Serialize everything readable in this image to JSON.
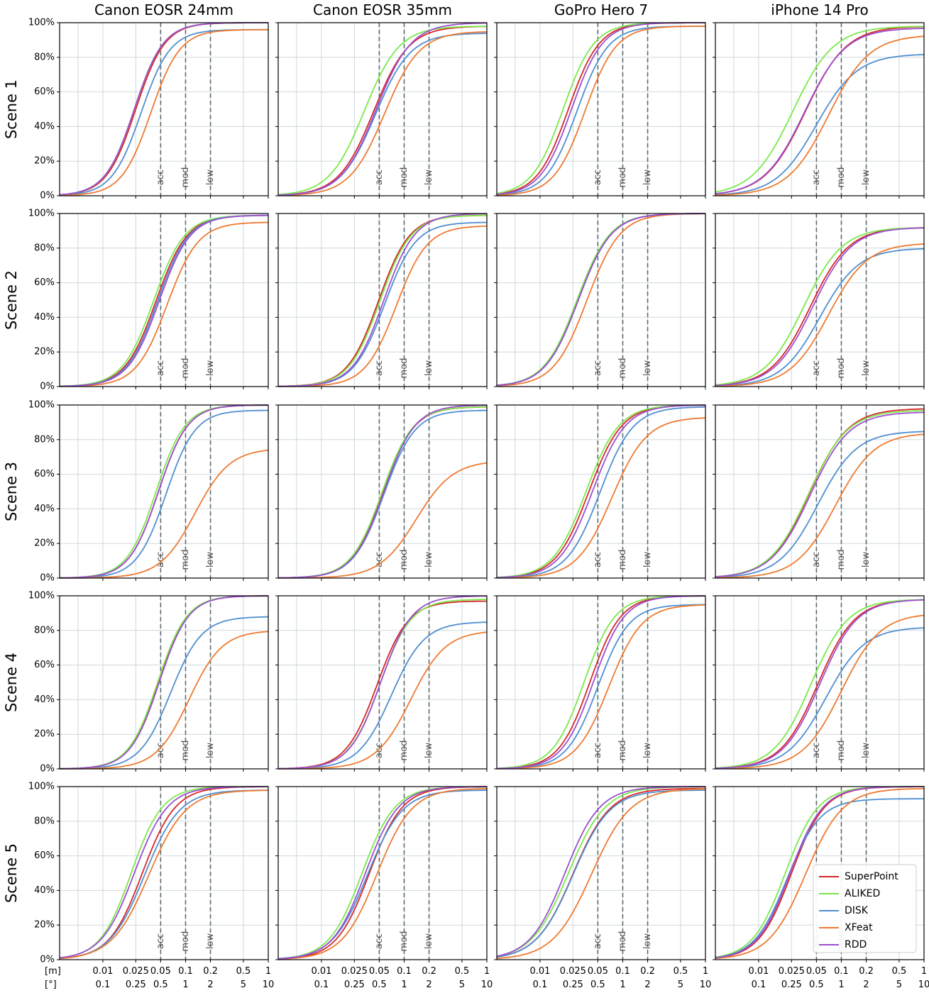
{
  "figure": {
    "column_titles": [
      "Canon EOSR 24mm",
      "Canon EOSR 35mm",
      "GoPro Hero 7",
      "iPhone 14 Pro"
    ],
    "row_titles": [
      "Scene 1",
      "Scene 2",
      "Scene 3",
      "Scene 4",
      "Scene 5"
    ],
    "x_unit_labels": [
      "[m]",
      "[°]"
    ]
  },
  "chart_data": {
    "type": "line",
    "subtype": "cumulative-distribution",
    "layout": "grid 5 rows (scenes) x 4 columns (cameras)",
    "x_scale": "log",
    "x_range_m": [
      0.003,
      1
    ],
    "x_ticks_m": [
      "0.01",
      "0.025",
      "0.05",
      "0.1",
      "0.2",
      "0.5",
      "1"
    ],
    "x_ticks_deg": [
      "0.1",
      "0.25",
      "0.5",
      "1",
      "2",
      "5",
      "10"
    ],
    "y_ticks": [
      "0%",
      "20%",
      "40%",
      "60%",
      "80%",
      "100%"
    ],
    "ylim": [
      0,
      100
    ],
    "grid": true,
    "thresholds": [
      {
        "label": "acc",
        "m": 0.05,
        "deg": 0.5
      },
      {
        "label": "mod",
        "m": 0.1,
        "deg": 1
      },
      {
        "label": "low",
        "m": 0.2,
        "deg": 2
      }
    ],
    "legend": {
      "location": "bottom-right of Scene 5 / iPhone 14 Pro panel"
    },
    "series": [
      {
        "name": "SuperPoint",
        "color": "#d62728"
      },
      {
        "name": "ALIKED",
        "color": "#7be84a"
      },
      {
        "name": "DISK",
        "color": "#4f8fd0"
      },
      {
        "name": "XFeat",
        "color": "#ee7a30"
      },
      {
        "name": "RDD",
        "color": "#9b4fd0"
      }
    ],
    "panels": [
      {
        "row": 0,
        "col": 0,
        "curves": [
          {
            "m": 0.025,
            "final": 100,
            "s": 0.3
          },
          {
            "m": 0.024,
            "final": 100,
            "s": 0.3
          },
          {
            "m": 0.029,
            "final": 96,
            "s": 0.3
          },
          {
            "m": 0.038,
            "final": 96,
            "s": 0.3
          },
          {
            "m": 0.024,
            "final": 100,
            "s": 0.3
          }
        ]
      },
      {
        "row": 0,
        "col": 1,
        "curves": [
          {
            "m": 0.043,
            "final": 98,
            "s": 0.36
          },
          {
            "m": 0.033,
            "final": 98,
            "s": 0.36
          },
          {
            "m": 0.045,
            "final": 94,
            "s": 0.36
          },
          {
            "m": 0.058,
            "final": 95,
            "s": 0.36
          },
          {
            "m": 0.046,
            "final": 100,
            "s": 0.36
          }
        ]
      },
      {
        "row": 0,
        "col": 2,
        "curves": [
          {
            "m": 0.022,
            "final": 100,
            "s": 0.32
          },
          {
            "m": 0.019,
            "final": 100,
            "s": 0.32
          },
          {
            "m": 0.028,
            "final": 98,
            "s": 0.32
          },
          {
            "m": 0.035,
            "final": 98,
            "s": 0.32
          },
          {
            "m": 0.024,
            "final": 100,
            "s": 0.32
          }
        ]
      },
      {
        "row": 0,
        "col": 3,
        "curves": [
          {
            "m": 0.037,
            "final": 98,
            "s": 0.42
          },
          {
            "m": 0.026,
            "final": 98,
            "s": 0.42
          },
          {
            "m": 0.05,
            "final": 82,
            "s": 0.42
          },
          {
            "m": 0.07,
            "final": 93,
            "s": 0.42
          },
          {
            "m": 0.036,
            "final": 97,
            "s": 0.42
          }
        ]
      },
      {
        "row": 1,
        "col": 0,
        "curves": [
          {
            "m": 0.044,
            "final": 99,
            "s": 0.32
          },
          {
            "m": 0.041,
            "final": 99,
            "s": 0.32
          },
          {
            "m": 0.046,
            "final": 99,
            "s": 0.32
          },
          {
            "m": 0.06,
            "final": 95,
            "s": 0.32
          },
          {
            "m": 0.048,
            "final": 99,
            "s": 0.32
          }
        ]
      },
      {
        "row": 1,
        "col": 1,
        "curves": [
          {
            "m": 0.049,
            "final": 99,
            "s": 0.32
          },
          {
            "m": 0.051,
            "final": 99,
            "s": 0.32
          },
          {
            "m": 0.058,
            "final": 95,
            "s": 0.32
          },
          {
            "m": 0.08,
            "final": 93,
            "s": 0.32
          },
          {
            "m": 0.057,
            "final": 100,
            "s": 0.32
          }
        ]
      },
      {
        "row": 1,
        "col": 2,
        "curves": [
          {
            "m": 0.029,
            "final": 100,
            "s": 0.34
          },
          {
            "m": 0.028,
            "final": 100,
            "s": 0.34
          },
          {
            "m": 0.029,
            "final": 100,
            "s": 0.34
          },
          {
            "m": 0.037,
            "final": 100,
            "s": 0.34
          },
          {
            "m": 0.029,
            "final": 100,
            "s": 0.34
          }
        ]
      },
      {
        "row": 1,
        "col": 3,
        "curves": [
          {
            "m": 0.042,
            "final": 92,
            "s": 0.4
          },
          {
            "m": 0.035,
            "final": 92,
            "s": 0.4
          },
          {
            "m": 0.055,
            "final": 80,
            "s": 0.4
          },
          {
            "m": 0.07,
            "final": 83,
            "s": 0.4
          },
          {
            "m": 0.045,
            "final": 92,
            "s": 0.4
          }
        ]
      },
      {
        "row": 2,
        "col": 0,
        "curves": [
          {
            "m": 0.047,
            "final": 100,
            "s": 0.3
          },
          {
            "m": 0.044,
            "final": 100,
            "s": 0.3
          },
          {
            "m": 0.058,
            "final": 97,
            "s": 0.3
          },
          {
            "m": 0.13,
            "final": 75,
            "s": 0.36
          },
          {
            "m": 0.047,
            "final": 100,
            "s": 0.3
          }
        ]
      },
      {
        "row": 2,
        "col": 1,
        "curves": [
          {
            "m": 0.055,
            "final": 99,
            "s": 0.32
          },
          {
            "m": 0.054,
            "final": 99,
            "s": 0.32
          },
          {
            "m": 0.057,
            "final": 97,
            "s": 0.32
          },
          {
            "m": 0.14,
            "final": 68,
            "s": 0.38
          },
          {
            "m": 0.057,
            "final": 100,
            "s": 0.32
          }
        ]
      },
      {
        "row": 2,
        "col": 2,
        "curves": [
          {
            "m": 0.039,
            "final": 100,
            "s": 0.34
          },
          {
            "m": 0.036,
            "final": 100,
            "s": 0.34
          },
          {
            "m": 0.053,
            "final": 99,
            "s": 0.34
          },
          {
            "m": 0.074,
            "final": 93,
            "s": 0.36
          },
          {
            "m": 0.043,
            "final": 100,
            "s": 0.34
          }
        ]
      },
      {
        "row": 2,
        "col": 3,
        "curves": [
          {
            "m": 0.041,
            "final": 98,
            "s": 0.4
          },
          {
            "m": 0.04,
            "final": 97,
            "s": 0.4
          },
          {
            "m": 0.052,
            "final": 85,
            "s": 0.4
          },
          {
            "m": 0.085,
            "final": 84,
            "s": 0.4
          },
          {
            "m": 0.042,
            "final": 96,
            "s": 0.4
          }
        ]
      },
      {
        "row": 3,
        "col": 0,
        "curves": [
          {
            "m": 0.047,
            "final": 100,
            "s": 0.3
          },
          {
            "m": 0.046,
            "final": 100,
            "s": 0.3
          },
          {
            "m": 0.066,
            "final": 88,
            "s": 0.32
          },
          {
            "m": 0.11,
            "final": 80,
            "s": 0.34
          },
          {
            "m": 0.048,
            "final": 100,
            "s": 0.3
          }
        ]
      },
      {
        "row": 3,
        "col": 1,
        "curves": [
          {
            "m": 0.047,
            "final": 97,
            "s": 0.32
          },
          {
            "m": 0.051,
            "final": 98,
            "s": 0.32
          },
          {
            "m": 0.07,
            "final": 85,
            "s": 0.34
          },
          {
            "m": 0.12,
            "final": 80,
            "s": 0.36
          },
          {
            "m": 0.052,
            "final": 100,
            "s": 0.32
          }
        ]
      },
      {
        "row": 3,
        "col": 2,
        "curves": [
          {
            "m": 0.04,
            "final": 100,
            "s": 0.32
          },
          {
            "m": 0.034,
            "final": 100,
            "s": 0.32
          },
          {
            "m": 0.05,
            "final": 95,
            "s": 0.32
          },
          {
            "m": 0.068,
            "final": 95,
            "s": 0.34
          },
          {
            "m": 0.044,
            "final": 100,
            "s": 0.32
          }
        ]
      },
      {
        "row": 3,
        "col": 3,
        "curves": [
          {
            "m": 0.052,
            "final": 98,
            "s": 0.38
          },
          {
            "m": 0.043,
            "final": 98,
            "s": 0.38
          },
          {
            "m": 0.065,
            "final": 82,
            "s": 0.4
          },
          {
            "m": 0.1,
            "final": 90,
            "s": 0.4
          },
          {
            "m": 0.055,
            "final": 98,
            "s": 0.38
          }
        ]
      },
      {
        "row": 4,
        "col": 0,
        "curves": [
          {
            "m": 0.03,
            "final": 100,
            "s": 0.34
          },
          {
            "m": 0.022,
            "final": 100,
            "s": 0.32
          },
          {
            "m": 0.032,
            "final": 98,
            "s": 0.36
          },
          {
            "m": 0.036,
            "final": 98,
            "s": 0.38
          },
          {
            "m": 0.024,
            "final": 100,
            "s": 0.34
          }
        ]
      },
      {
        "row": 4,
        "col": 1,
        "curves": [
          {
            "m": 0.038,
            "final": 100,
            "s": 0.34
          },
          {
            "m": 0.031,
            "final": 100,
            "s": 0.34
          },
          {
            "m": 0.036,
            "final": 98,
            "s": 0.36
          },
          {
            "m": 0.047,
            "final": 99,
            "s": 0.36
          },
          {
            "m": 0.034,
            "final": 100,
            "s": 0.34
          }
        ]
      },
      {
        "row": 4,
        "col": 2,
        "curves": [
          {
            "m": 0.025,
            "final": 99,
            "s": 0.38
          },
          {
            "m": 0.022,
            "final": 100,
            "s": 0.38
          },
          {
            "m": 0.025,
            "final": 98,
            "s": 0.38
          },
          {
            "m": 0.042,
            "final": 99,
            "s": 0.4
          },
          {
            "m": 0.02,
            "final": 100,
            "s": 0.36
          }
        ]
      },
      {
        "row": 4,
        "col": 3,
        "curves": [
          {
            "m": 0.025,
            "final": 100,
            "s": 0.34
          },
          {
            "m": 0.021,
            "final": 100,
            "s": 0.34
          },
          {
            "m": 0.022,
            "final": 93,
            "s": 0.34
          },
          {
            "m": 0.037,
            "final": 99,
            "s": 0.38
          },
          {
            "m": 0.024,
            "final": 100,
            "s": 0.34
          }
        ]
      }
    ]
  }
}
